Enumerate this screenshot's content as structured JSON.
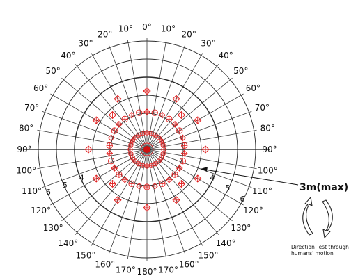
{
  "diagram": {
    "angle_labels_left": [
      "10°",
      "20°",
      "30°",
      "40°",
      "50°",
      "60°",
      "70°",
      "80°",
      "90°",
      "100°",
      "110°",
      "120°",
      "130°",
      "140°",
      "150°",
      "160°",
      "170°"
    ],
    "angle_labels_right": [
      "10°",
      "20°",
      "30°",
      "40°",
      "50°",
      "60°",
      "70°",
      "80°",
      "90°",
      "100°",
      "110°",
      "120°",
      "130°",
      "140°",
      "150°",
      "160°",
      "170°"
    ],
    "angle_label_top": "0°",
    "angle_label_bottom": "180°",
    "ring_numbers_left": [
      "6",
      "5",
      "4"
    ],
    "ring_numbers_right": [
      "4",
      "5",
      "6"
    ],
    "max_range_label": "3m(max)",
    "note_lines": [
      "Direction Test through",
      "humans' motion"
    ]
  },
  "colors": {
    "marker": "#e02020",
    "lines": "#2a2a2a"
  },
  "icons": {
    "motion": "rotate-arrows-icon"
  }
}
